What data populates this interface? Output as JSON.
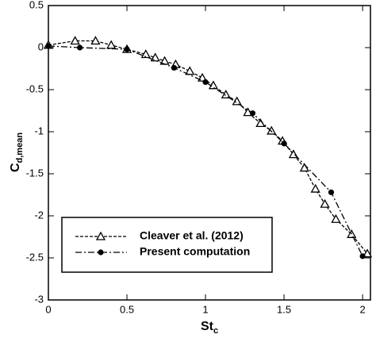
{
  "chart_data": {
    "type": "line",
    "x_label": {
      "text": "St",
      "subscript": "c"
    },
    "y_label": {
      "text": "C",
      "subscript": "d,mean"
    },
    "xlim": [
      0,
      2.05
    ],
    "ylim": [
      -3,
      0.5
    ],
    "xticks": [
      0,
      0.5,
      1,
      1.5,
      2
    ],
    "yticks": [
      0.5,
      0,
      -0.5,
      -1,
      -1.5,
      -2,
      -2.5,
      -3
    ],
    "legend": "lower left",
    "series": [
      {
        "name": "Cleaver et al. (2012)",
        "color": "#000000",
        "marker": "triangle",
        "dash": "4,2",
        "x": [
          0,
          0.17,
          0.3,
          0.4,
          0.5,
          0.62,
          0.68,
          0.74,
          0.81,
          0.9,
          0.98,
          1.05,
          1.13,
          1.2,
          1.27,
          1.35,
          1.42,
          1.49,
          1.56,
          1.63,
          1.7,
          1.76,
          1.83,
          1.93,
          2.03
        ],
        "values": [
          0.03,
          0.08,
          0.08,
          0.03,
          -0.02,
          -0.08,
          -0.12,
          -0.16,
          -0.2,
          -0.28,
          -0.36,
          -0.45,
          -0.56,
          -0.64,
          -0.77,
          -0.9,
          -0.99,
          -1.11,
          -1.27,
          -1.43,
          -1.68,
          -1.86,
          -2.04,
          -2.22,
          -2.45
        ]
      },
      {
        "name": "Present computation",
        "color": "#000000",
        "marker": "circle",
        "dash": "8,3,2,3",
        "x": [
          0,
          0.2,
          0.5,
          0.8,
          1,
          1.3,
          1.5,
          1.8,
          2
        ],
        "values": [
          0.02,
          0,
          -0.02,
          -0.24,
          -0.41,
          -0.78,
          -1.14,
          -1.72,
          -2.48
        ]
      }
    ]
  }
}
